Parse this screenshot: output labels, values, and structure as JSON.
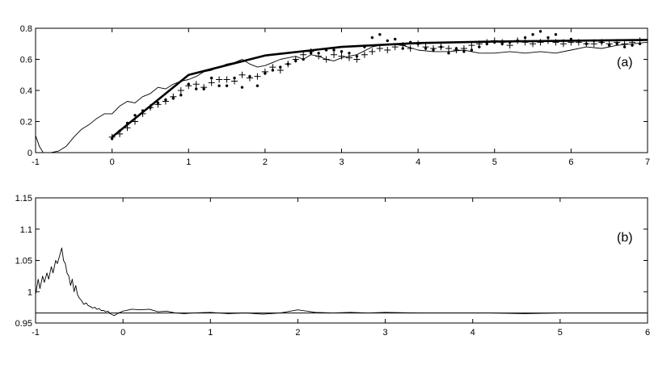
{
  "chart_data": [
    {
      "type": "line",
      "panel_label": "(a)",
      "xlim": [
        -1,
        7
      ],
      "ylim": [
        0,
        0.8
      ],
      "xticks": [
        -1,
        0,
        1,
        2,
        3,
        4,
        5,
        6,
        7
      ],
      "yticks": [
        0,
        0.2,
        0.4,
        0.6,
        0.8
      ],
      "grid": false,
      "series": [
        {
          "style": "thick-line",
          "x": [
            0,
            1,
            2,
            3,
            4,
            5,
            6,
            7
          ],
          "y": [
            0.1,
            0.5,
            0.625,
            0.68,
            0.705,
            0.715,
            0.72,
            0.725
          ]
        },
        {
          "style": "thin-line",
          "x": [
            -1,
            -0.95,
            -0.9,
            -0.8,
            -0.7,
            -0.6,
            -0.5,
            -0.4,
            -0.3,
            -0.2,
            -0.1,
            0,
            0.1,
            0.2,
            0.3,
            0.4,
            0.5,
            0.6,
            0.7,
            0.8,
            0.9,
            1.0,
            1.1,
            1.2,
            1.3,
            1.4,
            1.5,
            1.6,
            1.7,
            1.8,
            1.9,
            2.0,
            2.1,
            2.2,
            2.3,
            2.4,
            2.5,
            2.6,
            2.7,
            2.8,
            2.9,
            3.0,
            3.2,
            3.4,
            3.6,
            3.8,
            4.0,
            4.2,
            4.4,
            4.6,
            4.8,
            5.0,
            5.2,
            5.4,
            5.6,
            5.8,
            6.0,
            6.2,
            6.4,
            6.6,
            6.8,
            7.0
          ],
          "y": [
            0.11,
            0.04,
            0.0,
            0.0,
            0.01,
            0.04,
            0.1,
            0.15,
            0.18,
            0.22,
            0.25,
            0.25,
            0.3,
            0.33,
            0.32,
            0.36,
            0.38,
            0.42,
            0.41,
            0.44,
            0.46,
            0.47,
            0.49,
            0.52,
            0.53,
            0.55,
            0.57,
            0.58,
            0.6,
            0.57,
            0.55,
            0.56,
            0.58,
            0.6,
            0.61,
            0.62,
            0.6,
            0.63,
            0.62,
            0.6,
            0.59,
            0.61,
            0.63,
            0.68,
            0.7,
            0.69,
            0.66,
            0.65,
            0.65,
            0.66,
            0.64,
            0.64,
            0.65,
            0.64,
            0.65,
            0.64,
            0.66,
            0.68,
            0.67,
            0.69,
            0.7,
            0.71
          ]
        },
        {
          "style": "plus-markers",
          "x": [
            0.0,
            0.1,
            0.2,
            0.3,
            0.4,
            0.5,
            0.6,
            0.7,
            0.8,
            0.9,
            1.0,
            1.1,
            1.2,
            1.3,
            1.4,
            1.5,
            1.6,
            1.7,
            1.8,
            1.9,
            2.0,
            2.1,
            2.2,
            2.3,
            2.4,
            2.5,
            2.6,
            2.7,
            2.8,
            2.9,
            3.0,
            3.1,
            3.2,
            3.3,
            3.4,
            3.5,
            3.6,
            3.7,
            3.8,
            3.9,
            4.0,
            4.1,
            4.2,
            4.3,
            4.4,
            4.5,
            4.6,
            4.7,
            4.8,
            4.9,
            5.0,
            5.1,
            5.2,
            5.3,
            5.4,
            5.5,
            5.6,
            5.7,
            5.8,
            5.9,
            6.0,
            6.1,
            6.2,
            6.3,
            6.4,
            6.5,
            6.6,
            6.7,
            6.8,
            6.9
          ],
          "y": [
            0.1,
            0.12,
            0.16,
            0.2,
            0.25,
            0.29,
            0.31,
            0.33,
            0.36,
            0.4,
            0.43,
            0.44,
            0.42,
            0.45,
            0.47,
            0.47,
            0.46,
            0.5,
            0.48,
            0.49,
            0.52,
            0.55,
            0.53,
            0.57,
            0.6,
            0.63,
            0.65,
            0.62,
            0.6,
            0.63,
            0.62,
            0.61,
            0.6,
            0.63,
            0.65,
            0.67,
            0.66,
            0.68,
            0.69,
            0.67,
            0.7,
            0.68,
            0.67,
            0.68,
            0.67,
            0.66,
            0.67,
            0.69,
            0.7,
            0.71,
            0.72,
            0.71,
            0.69,
            0.72,
            0.71,
            0.7,
            0.71,
            0.72,
            0.71,
            0.7,
            0.71,
            0.71,
            0.7,
            0.7,
            0.71,
            0.7,
            0.71,
            0.7,
            0.71,
            0.72
          ]
        },
        {
          "style": "dot-markers",
          "x": [
            0.0,
            0.1,
            0.2,
            0.3,
            0.4,
            0.5,
            0.6,
            0.7,
            0.8,
            0.9,
            1.0,
            1.1,
            1.2,
            1.3,
            1.4,
            1.5,
            1.6,
            1.7,
            1.8,
            1.9,
            2.0,
            2.1,
            2.2,
            2.3,
            2.4,
            2.5,
            2.6,
            2.7,
            2.8,
            2.9,
            3.0,
            3.1,
            3.2,
            3.3,
            3.4,
            3.5,
            3.6,
            3.7,
            3.8,
            3.9,
            4.0,
            4.1,
            4.2,
            4.3,
            4.4,
            4.5,
            4.6,
            4.7,
            4.8,
            4.9,
            5.0,
            5.1,
            5.2,
            5.3,
            5.4,
            5.5,
            5.6,
            5.7,
            5.8,
            5.9,
            6.0,
            6.1,
            6.2,
            6.3,
            6.4,
            6.5,
            6.6,
            6.7,
            6.8,
            6.9
          ],
          "y": [
            0.09,
            0.14,
            0.19,
            0.24,
            0.27,
            0.29,
            0.32,
            0.34,
            0.35,
            0.37,
            0.44,
            0.41,
            0.41,
            0.48,
            0.43,
            0.43,
            0.48,
            0.42,
            0.49,
            0.43,
            0.51,
            0.53,
            0.55,
            0.57,
            0.59,
            0.6,
            0.64,
            0.64,
            0.66,
            0.66,
            0.65,
            0.64,
            0.62,
            0.68,
            0.74,
            0.76,
            0.72,
            0.73,
            0.67,
            0.71,
            0.7,
            0.67,
            0.66,
            0.68,
            0.64,
            0.67,
            0.65,
            0.66,
            0.68,
            0.7,
            0.71,
            0.7,
            0.71,
            0.72,
            0.74,
            0.76,
            0.78,
            0.74,
            0.76,
            0.72,
            0.73,
            0.72,
            0.7,
            0.72,
            0.71,
            0.69,
            0.7,
            0.68,
            0.69,
            0.7
          ]
        }
      ]
    },
    {
      "type": "line",
      "panel_label": "(b)",
      "xlim": [
        -1,
        6
      ],
      "ylim": [
        0.95,
        1.15
      ],
      "xticks": [
        -1,
        0,
        1,
        2,
        3,
        4,
        5,
        6
      ],
      "yticks": [
        0.95,
        1,
        1.05,
        1.1,
        1.15
      ],
      "ytick_labels": [
        "0.95",
        "1",
        "1.05",
        "1.1",
        "1.15"
      ],
      "grid": false,
      "reference_line": 0.966,
      "series": [
        {
          "style": "thin-line",
          "x": [
            -1.0,
            -0.97,
            -0.95,
            -0.92,
            -0.9,
            -0.87,
            -0.85,
            -0.82,
            -0.8,
            -0.77,
            -0.75,
            -0.72,
            -0.7,
            -0.68,
            -0.66,
            -0.64,
            -0.62,
            -0.6,
            -0.58,
            -0.56,
            -0.54,
            -0.52,
            -0.5,
            -0.47,
            -0.45,
            -0.42,
            -0.4,
            -0.37,
            -0.35,
            -0.32,
            -0.3,
            -0.27,
            -0.25,
            -0.22,
            -0.2,
            -0.17,
            -0.15,
            -0.12,
            -0.1,
            -0.05,
            0.0,
            0.1,
            0.2,
            0.3,
            0.4,
            0.5,
            0.6,
            0.7,
            0.8,
            1.0,
            1.2,
            1.4,
            1.6,
            1.8,
            2.0,
            2.2,
            2.4,
            2.6,
            2.8,
            3.0,
            3.4,
            3.8,
            4.2,
            4.6,
            5.0,
            5.4,
            5.8,
            6.0
          ],
          "y": [
            0.995,
            1.02,
            1.005,
            1.025,
            1.015,
            1.03,
            1.02,
            1.04,
            1.03,
            1.05,
            1.045,
            1.06,
            1.07,
            1.05,
            1.045,
            1.03,
            1.025,
            1.01,
            1.02,
            1.0,
            1.01,
            0.995,
            0.99,
            0.985,
            0.98,
            0.982,
            0.978,
            0.976,
            0.974,
            0.975,
            0.972,
            0.973,
            0.97,
            0.97,
            0.968,
            0.969,
            0.965,
            0.963,
            0.962,
            0.966,
            0.969,
            0.972,
            0.971,
            0.972,
            0.968,
            0.969,
            0.966,
            0.965,
            0.966,
            0.967,
            0.965,
            0.966,
            0.964,
            0.966,
            0.971,
            0.967,
            0.966,
            0.967,
            0.966,
            0.967,
            0.966,
            0.966,
            0.966,
            0.965,
            0.966,
            0.966,
            0.966,
            0.966
          ]
        }
      ]
    }
  ]
}
